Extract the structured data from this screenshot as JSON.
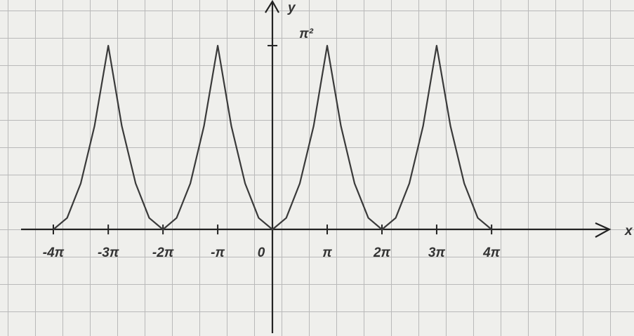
{
  "chart_data": {
    "type": "line",
    "x": [
      -12.57,
      -11.78,
      -11.0,
      -10.21,
      -9.42,
      -8.64,
      -7.85,
      -7.07,
      -6.28,
      -5.5,
      -4.71,
      -3.93,
      -3.14,
      -2.36,
      -1.57,
      -0.79,
      0,
      0.79,
      1.57,
      2.36,
      3.14,
      3.93,
      4.71,
      5.5,
      6.28,
      7.07,
      7.85,
      8.64,
      9.42,
      10.21,
      11.0,
      11.78,
      12.57
    ],
    "values": [
      0,
      0.62,
      2.47,
      5.55,
      9.87,
      5.55,
      2.47,
      0.62,
      0,
      0.62,
      2.47,
      5.55,
      9.87,
      5.55,
      2.47,
      0.62,
      0,
      0.62,
      2.47,
      5.55,
      9.87,
      5.55,
      2.47,
      0.62,
      0,
      0.62,
      2.47,
      5.55,
      9.87,
      5.55,
      2.47,
      0.62,
      0
    ],
    "color": "#3a3a3a",
    "xlabel": "x",
    "ylabel": "y",
    "xlim": [
      -15.63,
      20.74
    ],
    "ylim": [
      -5.72,
      12.32
    ],
    "xticks": [
      {
        "value": -12.57,
        "label": "-4π"
      },
      {
        "value": -9.42,
        "label": "-3π"
      },
      {
        "value": -6.28,
        "label": "-2π"
      },
      {
        "value": -3.14,
        "label": "-π"
      },
      0,
      {
        "value": 3.14,
        "label": "π"
      },
      {
        "value": 6.28,
        "label": "2π"
      },
      {
        "value": 9.42,
        "label": "3π"
      },
      {
        "value": 12.57,
        "label": "4π"
      }
    ],
    "yticks": [
      {
        "value": 9.87,
        "label": "π²"
      }
    ]
  }
}
